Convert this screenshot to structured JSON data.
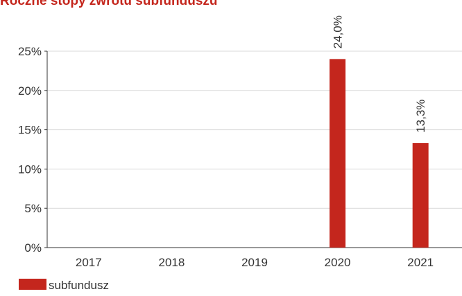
{
  "colors": {
    "accent": "#C4261D",
    "axis": "#333333",
    "grid": "#D9D9D9",
    "text": "#333333"
  },
  "chart_data": {
    "type": "bar",
    "title": "Roczne stopy zwrotu subfunduszu",
    "xlabel": "",
    "ylabel": "",
    "categories": [
      "2017",
      "2018",
      "2019",
      "2020",
      "2021"
    ],
    "series": [
      {
        "name": "subfundusz",
        "values": [
          null,
          null,
          null,
          24.0,
          13.3
        ]
      }
    ],
    "data_labels": [
      "",
      "",
      "",
      "24,0%",
      "13,3%"
    ],
    "ylim": [
      0,
      25
    ],
    "yticks": [
      0,
      5,
      10,
      15,
      20,
      25
    ],
    "ytick_labels": [
      "0%",
      "5%",
      "10%",
      "15%",
      "20%",
      "25%"
    ],
    "grid": true,
    "legend": {
      "position": "bottom-left",
      "label": "subfundusz"
    }
  }
}
